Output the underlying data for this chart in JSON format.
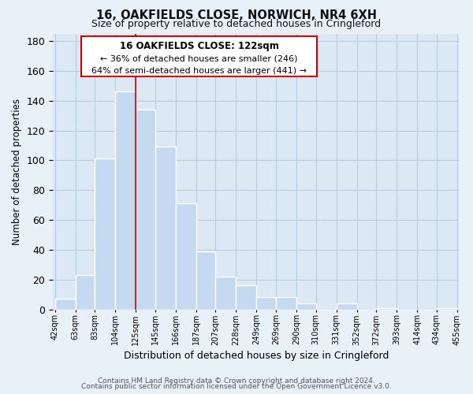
{
  "title1": "16, OAKFIELDS CLOSE, NORWICH, NR4 6XH",
  "title2": "Size of property relative to detached houses in Cringleford",
  "xlabel": "Distribution of detached houses by size in Cringleford",
  "ylabel": "Number of detached properties",
  "bar_edges": [
    42,
    63,
    83,
    104,
    125,
    145,
    166,
    187,
    207,
    228,
    249,
    269,
    290,
    310,
    331,
    352,
    372,
    393,
    414,
    434,
    455
  ],
  "bar_heights": [
    7,
    23,
    101,
    146,
    134,
    109,
    71,
    39,
    22,
    16,
    8,
    8,
    4,
    0,
    4,
    0,
    1,
    0,
    0,
    1
  ],
  "bar_color": "#c5daf0",
  "bar_edge_color": "#ffffff",
  "bar_linewidth": 1.0,
  "property_line_x": 125,
  "property_line_color": "#cc0000",
  "ylim": [
    0,
    185
  ],
  "yticks": [
    0,
    20,
    40,
    60,
    80,
    100,
    120,
    140,
    160,
    180
  ],
  "xtick_labels": [
    "42sqm",
    "63sqm",
    "83sqm",
    "104sqm",
    "125sqm",
    "145sqm",
    "166sqm",
    "187sqm",
    "207sqm",
    "228sqm",
    "249sqm",
    "269sqm",
    "290sqm",
    "310sqm",
    "331sqm",
    "352sqm",
    "372sqm",
    "393sqm",
    "414sqm",
    "434sqm",
    "455sqm"
  ],
  "annotation_box_title": "16 OAKFIELDS CLOSE: 122sqm",
  "annotation_line1": "← 36% of detached houses are smaller (246)",
  "annotation_line2": "64% of semi-detached houses are larger (441) →",
  "footer1": "Contains HM Land Registry data © Crown copyright and database right 2024.",
  "footer2": "Contains public sector information licensed under the Open Government Licence v3.0.",
  "background_color": "#e8f0f8",
  "plot_bg_color": "#dce8f4",
  "grid_color": "#b8cede",
  "ann_box_edge_color": "#cc0000",
  "ann_box_face_color": "#ffffff"
}
